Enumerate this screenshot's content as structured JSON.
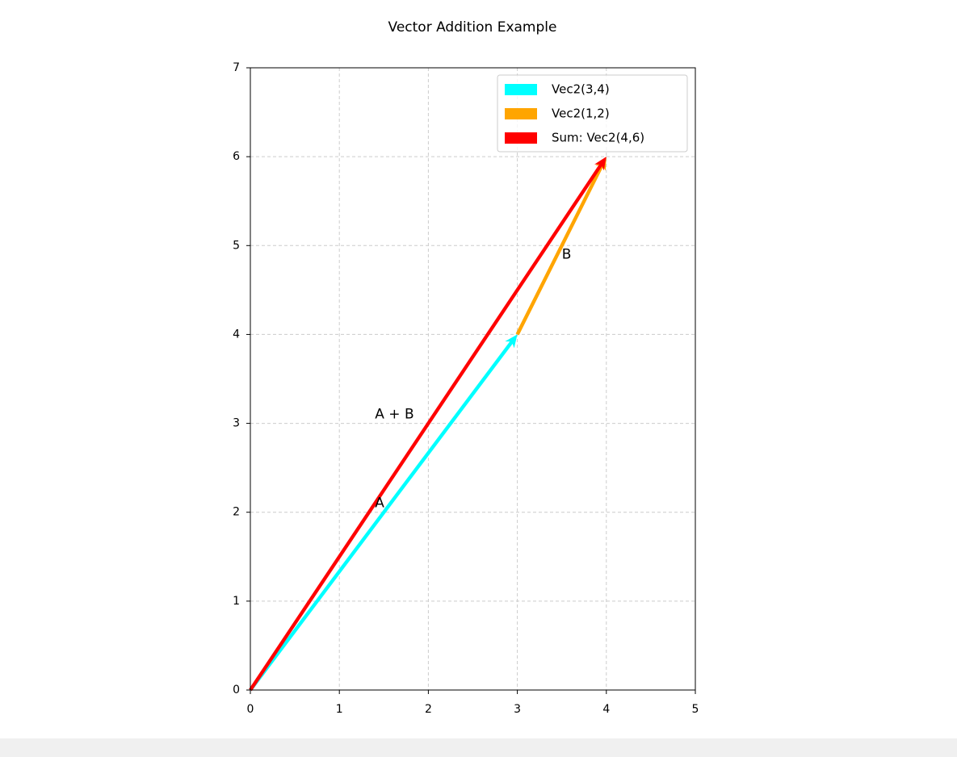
{
  "chart_data": {
    "type": "vector",
    "title": "Vector Addition Example",
    "series": [
      {
        "name": "Vec2(3,4)",
        "color": "#00ffff",
        "x": [
          0
        ],
        "y": [
          0
        ],
        "u": [
          3
        ],
        "v": [
          4
        ]
      },
      {
        "name": "Vec2(1,2)",
        "color": "#ffa500",
        "x": [
          3
        ],
        "y": [
          4
        ],
        "u": [
          1
        ],
        "v": [
          2
        ]
      },
      {
        "name": "Sum: Vec2(4,6)",
        "color": "#ff0000",
        "x": [
          0
        ],
        "y": [
          0
        ],
        "u": [
          4
        ],
        "v": [
          6
        ]
      }
    ],
    "annotations": [
      {
        "text": "A",
        "x": 1.4,
        "y": 2.1
      },
      {
        "text": "B",
        "x": 3.5,
        "y": 4.9
      },
      {
        "text": "A + B",
        "x": 1.4,
        "y": 3.1
      }
    ],
    "xlim": [
      0,
      5
    ],
    "ylim": [
      0,
      7
    ],
    "xticks": [
      0,
      1,
      2,
      3,
      4,
      5
    ],
    "yticks": [
      0,
      1,
      2,
      3,
      4,
      5,
      6,
      7
    ],
    "grid": true,
    "legend": "upper right"
  }
}
